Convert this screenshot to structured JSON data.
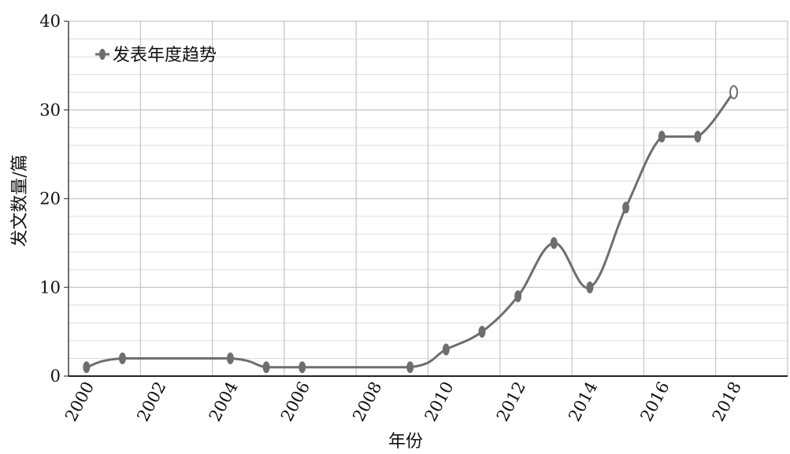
{
  "chart_data": {
    "type": "line",
    "xlabel": "年份",
    "ylabel": "发文数量/篇",
    "ylim": [
      0,
      40
    ],
    "yticks": [
      "0",
      "10",
      "20",
      "30",
      "40"
    ],
    "xticks": [
      "2000",
      "2002",
      "2004",
      "2006",
      "2008",
      "2010",
      "2012",
      "2014",
      "2016",
      "2018"
    ],
    "grid": true,
    "legend": "top-left",
    "series": [
      {
        "name": "发表年度趋势",
        "color": "#6e6e6e",
        "x": [
          2000,
          2001,
          2004,
          2005,
          2006,
          2009,
          2010,
          2011,
          2012,
          2013,
          2014,
          2015,
          2016,
          2017,
          2018
        ],
        "values": [
          1,
          2,
          2,
          1,
          1,
          1,
          3,
          5,
          9,
          15,
          10,
          19,
          27,
          27,
          32
        ]
      }
    ]
  }
}
